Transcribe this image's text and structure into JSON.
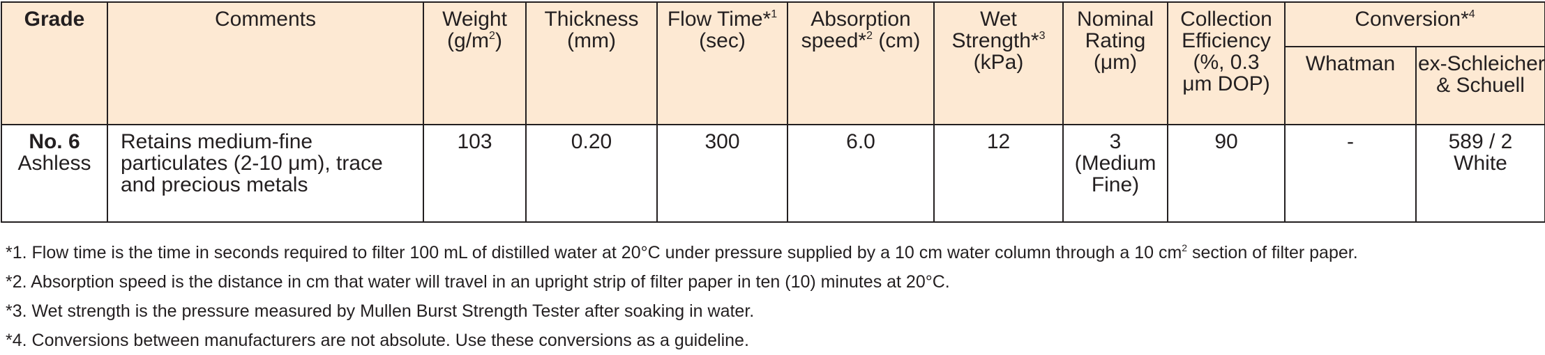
{
  "header": [
    [
      [
        "Grade"
      ]
    ],
    [
      [
        "Comments"
      ]
    ],
    [
      [
        "Weight"
      ],
      [
        "(g/m",
        "2",
        ")"
      ]
    ],
    [
      [
        "Thickness"
      ],
      [
        "(mm)"
      ]
    ],
    [
      [
        "Flow Time*",
        "1"
      ],
      [
        "(sec)"
      ]
    ],
    [
      [
        "Absorption"
      ],
      [
        "speed*",
        "2",
        " (cm)"
      ]
    ],
    [
      [
        "Wet"
      ],
      [
        "Strength*",
        "3"
      ],
      [
        "(kPa)"
      ]
    ],
    [
      [
        "Nominal"
      ],
      [
        "Rating"
      ],
      [
        "(μm)"
      ]
    ],
    [
      [
        "Collection"
      ],
      [
        "Efficiency"
      ],
      [
        "(%, 0.3"
      ],
      [
        "μm DOP)"
      ]
    ]
  ],
  "conversion": {
    "title": [
      [
        "Conversion*",
        "4"
      ]
    ],
    "columns": [
      [
        [
          "Whatman"
        ]
      ],
      [
        [
          "ex-Schleicher"
        ],
        [
          "& Schuell"
        ]
      ]
    ]
  },
  "row": [
    [
      [
        "No. 6"
      ],
      [
        "Ashless"
      ]
    ],
    [
      [
        "Retains medium-fine"
      ],
      [
        "particulates (2-10 μm), trace"
      ],
      [
        "and precious metals"
      ]
    ],
    [
      [
        "103"
      ]
    ],
    [
      [
        "0.20"
      ]
    ],
    [
      [
        "300"
      ]
    ],
    [
      [
        "6.0"
      ]
    ],
    [
      [
        "12"
      ]
    ],
    [
      [
        "3"
      ],
      [
        "(Medium"
      ],
      [
        "Fine)"
      ]
    ],
    [
      [
        "90"
      ]
    ],
    [
      [
        "-"
      ]
    ],
    [
      [
        "589 / 2"
      ],
      [
        "White"
      ]
    ]
  ],
  "footnotes": [
    [
      "*1. Flow time is the time in seconds required to filter 100 mL of distilled water at 20°C under pressure supplied by a 10 cm water column through a 10 cm",
      "2",
      " section of filter paper."
    ],
    [
      "*2. Absorption speed is the distance in cm that water will travel in an upright strip of filter paper in ten (10) minutes at 20°C."
    ],
    [
      "*3. Wet strength is the pressure measured by Mullen Burst Strength Tester after soaking in water."
    ],
    [
      "*4. Conversions between manufacturers are not absolute. Use these conversions as a guideline."
    ]
  ]
}
